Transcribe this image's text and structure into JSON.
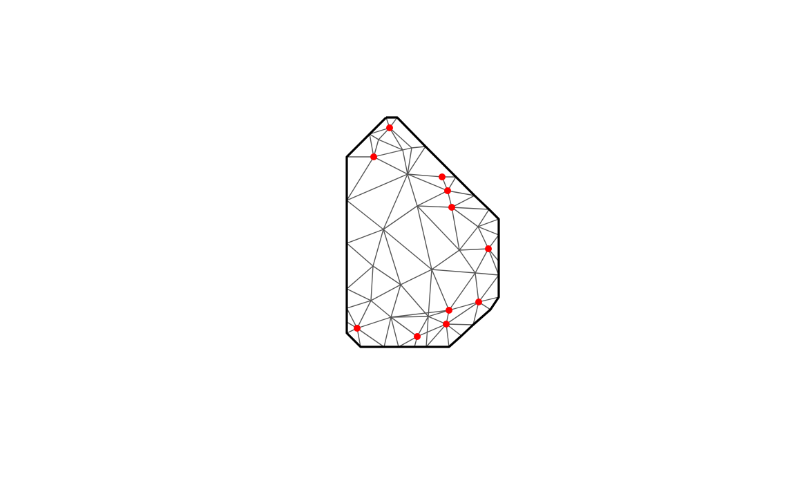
{
  "diagram": {
    "type": "constrained triangulation mesh",
    "colors": {
      "background": "#ffffff",
      "boundary": "#000000",
      "mesh_edge": "#555555",
      "seed_point": "#ff0000"
    },
    "boundary_edge_count": 9,
    "mesh_edge_count": 97,
    "seed_point_count": 11
  }
}
